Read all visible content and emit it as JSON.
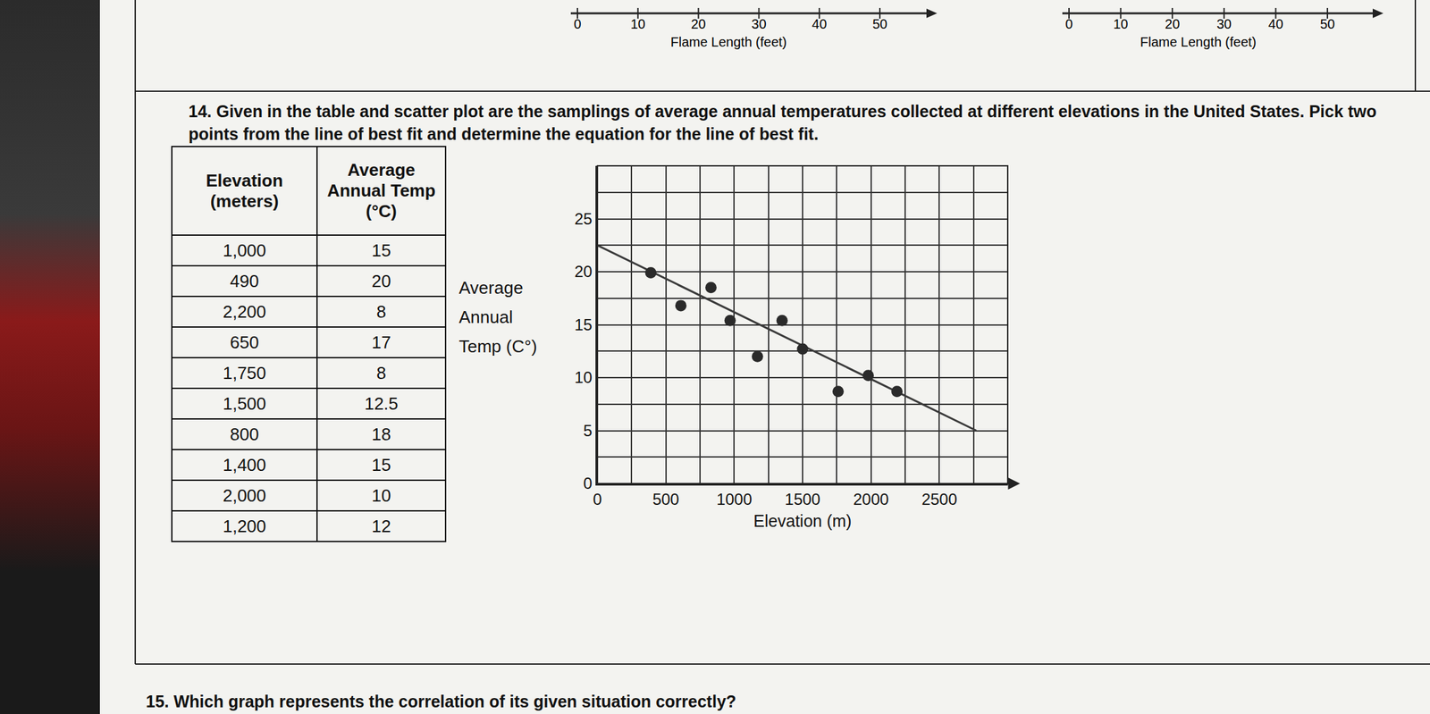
{
  "top_axes": [
    {
      "ticks": [
        0,
        10,
        20,
        30,
        40,
        50
      ],
      "label": "Flame Length (feet)"
    },
    {
      "ticks": [
        0,
        10,
        20,
        30,
        40,
        50
      ],
      "label": "Flame Length (feet)"
    }
  ],
  "question14": "14. Given in the table and scatter plot are the samplings of average annual temperatures collected at different elevations in the United States.  Pick two points from the line of best fit and determine the equation for the line of best fit.",
  "table": {
    "header": [
      "Elevation (meters)",
      "Average Annual Temp (°C)"
    ],
    "rows": [
      [
        "1,000",
        "15"
      ],
      [
        "490",
        "20"
      ],
      [
        "2,200",
        "8"
      ],
      [
        "650",
        "17"
      ],
      [
        "1,750",
        "8"
      ],
      [
        "1,500",
        "12.5"
      ],
      [
        "800",
        "18"
      ],
      [
        "1,400",
        "15"
      ],
      [
        "2,000",
        "10"
      ],
      [
        "1,200",
        "12"
      ]
    ]
  },
  "chart_data": {
    "type": "scatter",
    "x": [
      390,
      830,
      610,
      970,
      1350,
      1500,
      1170,
      1980,
      2190,
      1760
    ],
    "values": [
      19.9,
      18.5,
      16.8,
      15.4,
      15.4,
      12.7,
      12.0,
      10.2,
      8.7,
      8.7
    ],
    "color": "#2a2a2a",
    "marker": "circle",
    "fit_line": {
      "x": [
        0,
        2770
      ],
      "values": [
        22.5,
        5
      ],
      "color": "#3a3a3a"
    },
    "xlabel": "Elevation (m)",
    "ylabel": "Average Annual Temp (C°)",
    "xlim": [
      0,
      3000
    ],
    "ylim": [
      0,
      30
    ],
    "xticks": [
      0,
      500,
      1000,
      1500,
      2000,
      2500
    ],
    "yticks": [
      0,
      5,
      10,
      15,
      20,
      25
    ],
    "grid": true
  },
  "question15": "15. Which graph represents the correlation of its given situation correctly?"
}
